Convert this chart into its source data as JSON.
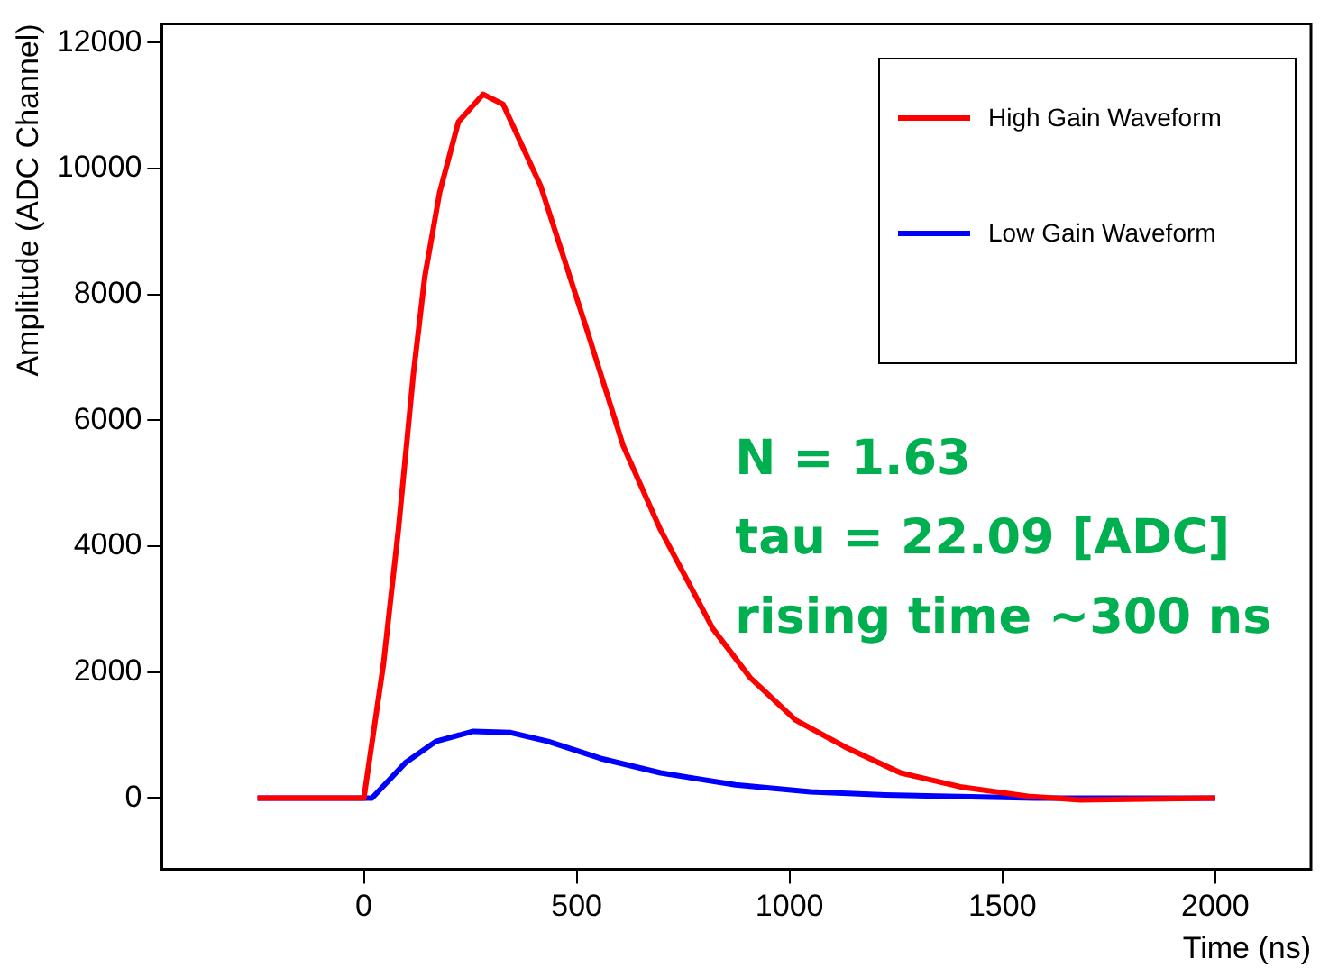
{
  "chart_data": {
    "type": "line",
    "xlabel": "Time (ns)",
    "ylabel": "Amplitude (ADC Channel)",
    "xlim": [
      -475,
      2225
    ],
    "xticks": [
      0,
      500,
      1000,
      1500,
      2000
    ],
    "ylim": [
      -1130,
      12300
    ],
    "yticks": [
      0,
      2000,
      4000,
      6000,
      8000,
      10000,
      12000
    ],
    "grid": false,
    "legend": "top right",
    "marker": "none",
    "line_style": "solid",
    "annotations": [
      "N = 1.63",
      "tau = 22.09 [ADC]",
      "rising time ~300 ns"
    ],
    "series": [
      {
        "name": "High Gain Waveform",
        "color": "#ff0000",
        "x": [
          -250,
          0,
          46,
          81,
          116,
          143,
          178,
          222,
          280,
          327,
          415,
          521,
          609,
          697,
          820,
          908,
          1014,
          1137,
          1261,
          1401,
          1560,
          1683,
          2000
        ],
        "values": [
          0,
          0,
          2130,
          4260,
          6720,
          8280,
          9620,
          10740,
          11180,
          11020,
          9730,
          7500,
          5600,
          4260,
          2690,
          1910,
          1240,
          790,
          400,
          180,
          30,
          -30,
          0
        ]
      },
      {
        "name": "Low Gain Waveform",
        "color": "#0000ff",
        "x": [
          -250,
          0,
          19,
          99,
          169,
          257,
          345,
          433,
          556,
          697,
          873,
          1049,
          1225,
          1577,
          2000
        ],
        "values": [
          0,
          0,
          0,
          570,
          900,
          1060,
          1040,
          900,
          630,
          400,
          210,
          100,
          50,
          0,
          0
        ]
      }
    ]
  }
}
